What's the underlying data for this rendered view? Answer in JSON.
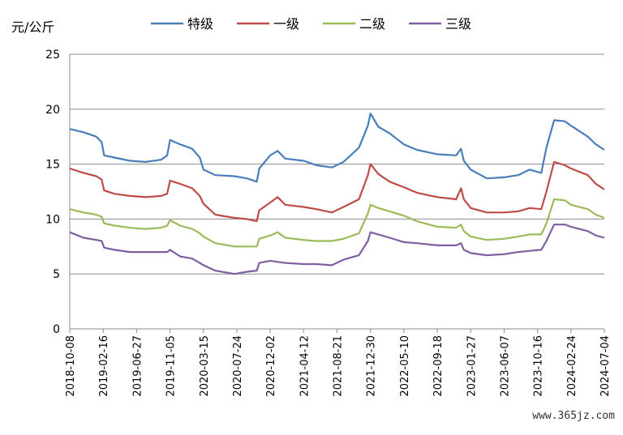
{
  "chart_data": {
    "type": "line",
    "ylabel": "元/公斤",
    "ylim": [
      0,
      25
    ],
    "yticks": [
      0,
      5,
      10,
      15,
      20,
      25
    ],
    "grid": "horizontal",
    "legend_position": "top",
    "x_tick_labels": [
      "2018-10-08",
      "2019-02-16",
      "2019-06-27",
      "2019-11-05",
      "2020-03-15",
      "2020-07-24",
      "2020-12-02",
      "2021-04-12",
      "2021-08-21",
      "2021-12-30",
      "2022-05-10",
      "2022-09-18",
      "2023-01-27",
      "2023-06-07",
      "2023-10-16",
      "2024-02-24",
      "2024-07-04"
    ],
    "x_range": [
      "2018-10-08",
      "2024-07-04"
    ],
    "series": [
      {
        "name": "特级",
        "color": "#4a7ebb",
        "x": [
          "2018-10-08",
          "2018-12-01",
          "2019-01-20",
          "2019-02-10",
          "2019-02-20",
          "2019-04-01",
          "2019-06-01",
          "2019-08-01",
          "2019-10-01",
          "2019-10-25",
          "2019-11-05",
          "2019-12-15",
          "2020-01-31",
          "2020-03-01",
          "2020-03-15",
          "2020-05-01",
          "2020-07-15",
          "2020-09-01",
          "2020-10-10",
          "2020-10-20",
          "2020-12-02",
          "2020-12-31",
          "2021-01-30",
          "2021-04-12",
          "2021-06-01",
          "2021-08-01",
          "2021-09-15",
          "2021-11-15",
          "2021-12-20",
          "2021-12-30",
          "2022-01-30",
          "2022-03-15",
          "2022-05-10",
          "2022-06-30",
          "2022-09-18",
          "2022-12-01",
          "2022-12-20",
          "2022-12-31",
          "2023-01-27",
          "2023-03-31",
          "2023-06-07",
          "2023-08-01",
          "2023-09-15",
          "2023-10-31",
          "2023-11-20",
          "2023-12-20",
          "2024-01-31",
          "2024-02-24",
          "2024-04-30",
          "2024-06-01",
          "2024-07-04"
        ],
        "values": [
          18.2,
          17.9,
          17.5,
          17.0,
          15.8,
          15.6,
          15.3,
          15.2,
          15.4,
          15.8,
          17.2,
          16.8,
          16.4,
          15.6,
          14.5,
          14.0,
          13.9,
          13.7,
          13.4,
          14.6,
          15.8,
          16.2,
          15.5,
          15.3,
          14.9,
          14.7,
          15.2,
          16.5,
          18.5,
          19.6,
          18.4,
          17.8,
          16.8,
          16.3,
          15.9,
          15.8,
          16.4,
          15.3,
          14.5,
          13.7,
          13.8,
          14.0,
          14.5,
          14.2,
          16.5,
          19.0,
          18.9,
          18.5,
          17.5,
          16.8,
          16.3
        ]
      },
      {
        "name": "一级",
        "color": "#be4b48",
        "x": [
          "2018-10-08",
          "2018-12-01",
          "2019-01-20",
          "2019-02-10",
          "2019-02-20",
          "2019-04-01",
          "2019-06-01",
          "2019-08-01",
          "2019-10-01",
          "2019-10-25",
          "2019-11-05",
          "2019-12-15",
          "2020-01-31",
          "2020-03-01",
          "2020-03-15",
          "2020-05-01",
          "2020-07-15",
          "2020-09-01",
          "2020-10-10",
          "2020-10-20",
          "2020-12-02",
          "2020-12-31",
          "2021-01-30",
          "2021-04-12",
          "2021-06-01",
          "2021-08-01",
          "2021-09-15",
          "2021-11-15",
          "2021-12-20",
          "2021-12-30",
          "2022-01-30",
          "2022-03-15",
          "2022-05-10",
          "2022-06-30",
          "2022-09-18",
          "2022-12-01",
          "2022-12-20",
          "2022-12-31",
          "2023-01-27",
          "2023-03-31",
          "2023-06-07",
          "2023-08-01",
          "2023-09-15",
          "2023-10-31",
          "2023-11-20",
          "2023-12-20",
          "2024-01-31",
          "2024-02-24",
          "2024-04-30",
          "2024-06-01",
          "2024-07-04"
        ],
        "values": [
          14.6,
          14.2,
          13.9,
          13.6,
          12.6,
          12.3,
          12.1,
          12.0,
          12.1,
          12.3,
          13.5,
          13.2,
          12.8,
          12.1,
          11.4,
          10.4,
          10.1,
          10.0,
          9.8,
          10.8,
          11.5,
          12.0,
          11.3,
          11.1,
          10.9,
          10.6,
          11.1,
          11.8,
          14.0,
          15.0,
          14.1,
          13.4,
          12.9,
          12.4,
          12.0,
          11.8,
          12.8,
          11.8,
          11.0,
          10.6,
          10.6,
          10.7,
          11.0,
          10.9,
          12.5,
          15.2,
          14.9,
          14.6,
          14.0,
          13.2,
          12.7
        ]
      },
      {
        "name": "二级",
        "color": "#9bbb59",
        "x": [
          "2018-10-08",
          "2018-12-01",
          "2019-01-20",
          "2019-02-10",
          "2019-02-20",
          "2019-04-01",
          "2019-06-01",
          "2019-08-01",
          "2019-10-01",
          "2019-10-25",
          "2019-11-05",
          "2019-12-15",
          "2020-01-31",
          "2020-03-01",
          "2020-03-15",
          "2020-05-01",
          "2020-07-15",
          "2020-09-01",
          "2020-10-10",
          "2020-10-20",
          "2020-12-02",
          "2020-12-31",
          "2021-01-30",
          "2021-04-12",
          "2021-06-01",
          "2021-08-01",
          "2021-09-15",
          "2021-11-15",
          "2021-12-20",
          "2021-12-30",
          "2022-01-30",
          "2022-03-15",
          "2022-05-10",
          "2022-06-30",
          "2022-09-18",
          "2022-12-01",
          "2022-12-20",
          "2022-12-31",
          "2023-01-27",
          "2023-03-31",
          "2023-06-07",
          "2023-08-01",
          "2023-09-15",
          "2023-10-31",
          "2023-11-20",
          "2023-12-20",
          "2024-01-31",
          "2024-02-24",
          "2024-04-30",
          "2024-06-01",
          "2024-07-04"
        ],
        "values": [
          10.9,
          10.6,
          10.4,
          10.2,
          9.6,
          9.4,
          9.2,
          9.1,
          9.2,
          9.4,
          9.9,
          9.4,
          9.1,
          8.7,
          8.4,
          7.8,
          7.5,
          7.5,
          7.5,
          8.2,
          8.5,
          8.8,
          8.3,
          8.1,
          8.0,
          8.0,
          8.2,
          8.7,
          10.5,
          11.3,
          11.0,
          10.7,
          10.3,
          9.8,
          9.3,
          9.2,
          9.5,
          8.9,
          8.4,
          8.1,
          8.2,
          8.4,
          8.6,
          8.6,
          9.6,
          11.8,
          11.7,
          11.3,
          10.9,
          10.4,
          10.1
        ]
      },
      {
        "name": "三级",
        "color": "#7f5fa0",
        "x": [
          "2018-10-08",
          "2018-12-01",
          "2019-01-20",
          "2019-02-10",
          "2019-02-20",
          "2019-04-01",
          "2019-06-01",
          "2019-08-01",
          "2019-10-01",
          "2019-10-25",
          "2019-11-05",
          "2019-12-15",
          "2020-01-31",
          "2020-03-01",
          "2020-03-15",
          "2020-05-01",
          "2020-07-15",
          "2020-09-01",
          "2020-10-10",
          "2020-10-20",
          "2020-12-02",
          "2020-12-31",
          "2021-01-30",
          "2021-04-12",
          "2021-06-01",
          "2021-08-01",
          "2021-09-15",
          "2021-11-15",
          "2021-12-20",
          "2021-12-30",
          "2022-01-30",
          "2022-03-15",
          "2022-05-10",
          "2022-06-30",
          "2022-09-18",
          "2022-12-01",
          "2022-12-20",
          "2022-12-31",
          "2023-01-27",
          "2023-03-31",
          "2023-06-07",
          "2023-08-01",
          "2023-09-15",
          "2023-10-31",
          "2023-11-20",
          "2023-12-20",
          "2024-01-31",
          "2024-02-24",
          "2024-04-30",
          "2024-06-01",
          "2024-07-04"
        ],
        "values": [
          8.8,
          8.3,
          8.1,
          8.0,
          7.4,
          7.2,
          7.0,
          7.0,
          7.0,
          7.0,
          7.2,
          6.6,
          6.4,
          6.0,
          5.8,
          5.3,
          5.0,
          5.2,
          5.3,
          6.0,
          6.2,
          6.1,
          6.0,
          5.9,
          5.9,
          5.8,
          6.3,
          6.7,
          8.0,
          8.8,
          8.6,
          8.3,
          7.9,
          7.8,
          7.6,
          7.6,
          7.8,
          7.2,
          6.9,
          6.7,
          6.8,
          7.0,
          7.1,
          7.2,
          8.0,
          9.5,
          9.5,
          9.3,
          8.9,
          8.5,
          8.3
        ]
      }
    ]
  },
  "watermark": "www.365jz.com"
}
